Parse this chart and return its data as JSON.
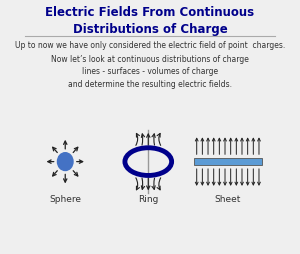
{
  "title": "Electric Fields From Continuous\nDistributions of Charge",
  "title_color": "#00008B",
  "title_fontsize": 8.5,
  "bg_color": "#EFEFEF",
  "line1": "Up to now we have only considered the electric field of point  charges.",
  "line2": "Now let’s look at continuous distributions of charge\nlines - surfaces - volumes of charge\nand determine the resulting electric fields.",
  "label_sphere": "Sphere",
  "label_ring": "Ring",
  "label_sheet": "Sheet",
  "body_text_color": "#333333",
  "sphere_color": "#4472C4",
  "ring_color": "#00008B",
  "sheet_color": "#5B9BD5",
  "arrow_color": "#222222",
  "sep_line_color": "#aaaaaa",
  "fig_w": 3.0,
  "fig_h": 2.55,
  "dpi": 100
}
